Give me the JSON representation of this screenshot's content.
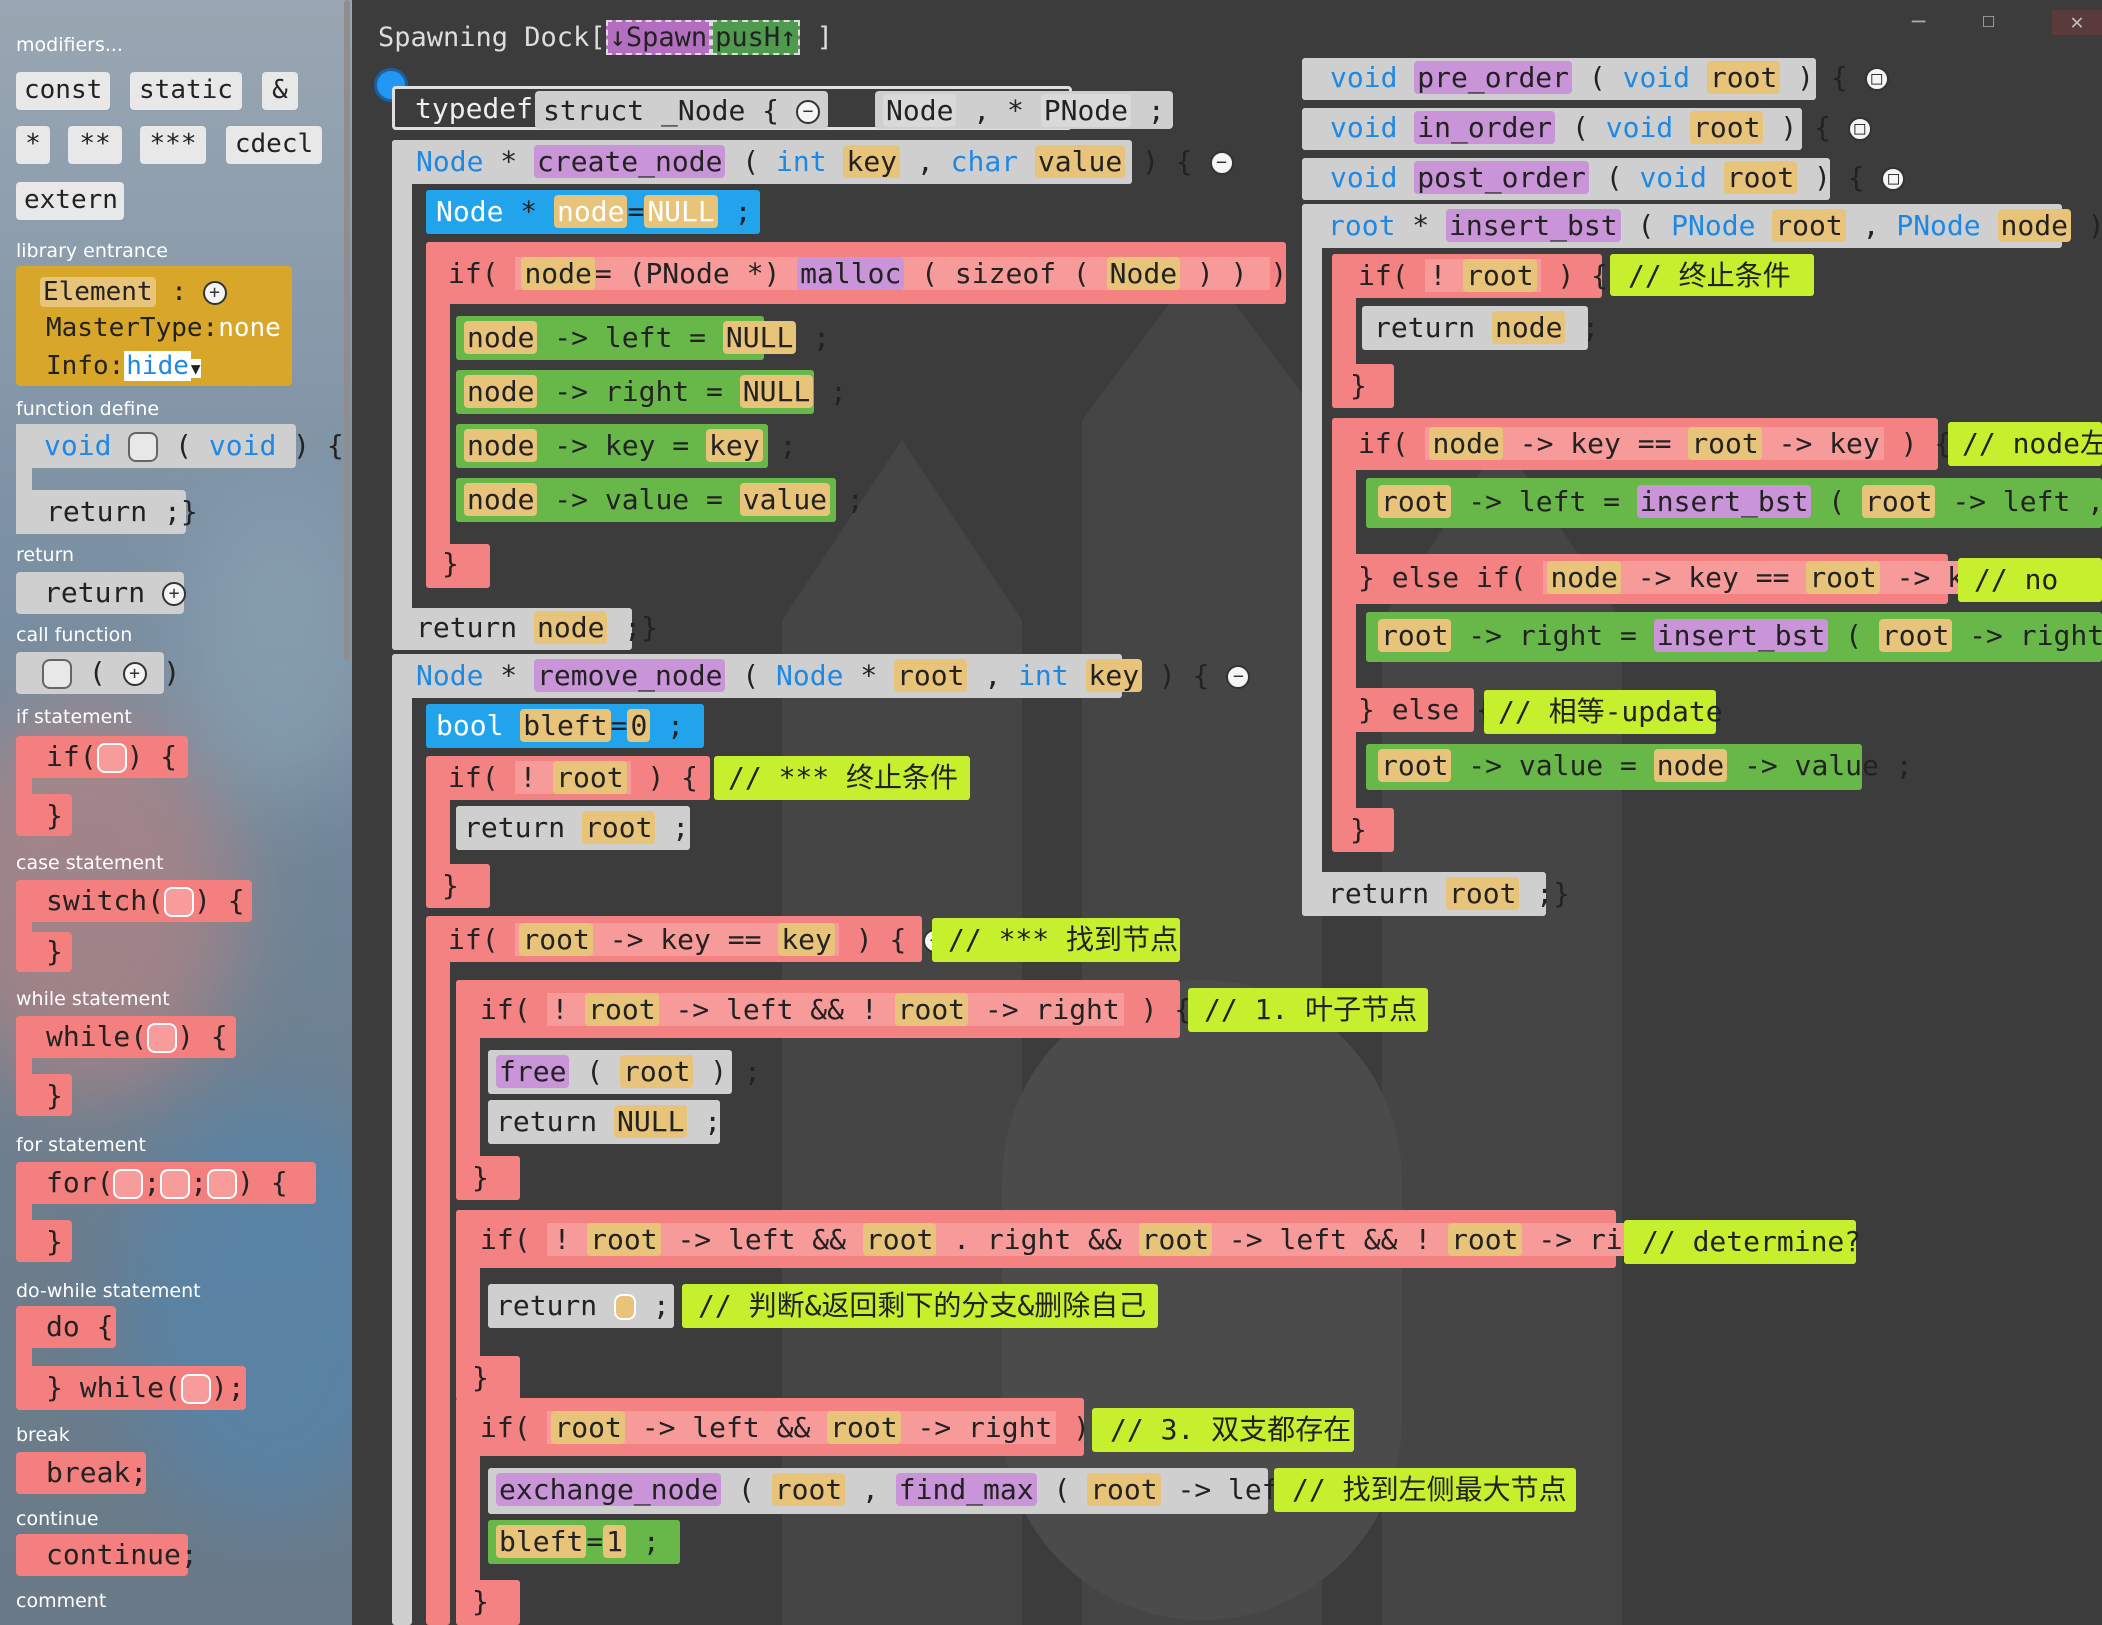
{
  "window": {
    "title": "Spawning Dock[",
    "dock_spawn": "↓Spawn",
    "dock_push": "pusH↑",
    "dock_end": "]",
    "minimize": "─",
    "maximize": "☐",
    "close": "✕"
  },
  "palette": {
    "modifiers_title": "modifiers...",
    "mods": [
      "const",
      "static",
      "&",
      "*",
      "**",
      "***",
      "cdecl",
      "extern"
    ],
    "library_title": "library entrance",
    "element_label": "Element",
    "element_colon": ":",
    "mastertype_label": "MasterType:",
    "mastertype_value": "none",
    "info_label": "Info:",
    "info_value": "hide",
    "function_define_title": "function define",
    "fd_void1": "void",
    "fd_void2": "void",
    "fd_paren_open": "(",
    "fd_paren_close": ") {",
    "fd_return": "return ;}",
    "return_title": "return",
    "return_label": "return",
    "call_title": "call function",
    "if_title": "if statement",
    "if_label": "if(",
    "if_close": ") {",
    "case_title": "case statement",
    "switch_label": "switch(",
    "while_title": "while statement",
    "while_label": "while(",
    "for_title": "for statement",
    "for_label": "for(",
    "dowhile_title": "do-while statement",
    "do_label": "do {",
    "dowhile_label": "} while(",
    "dowhile_end": ");",
    "break_title": "break",
    "break_label": "break;",
    "continue_title": "continue",
    "continue_label": "continue;",
    "comment_title": "comment",
    "brace_close": "}"
  },
  "code": {
    "typedef": {
      "kw": "typedef",
      "struct": "struct",
      "name": "_Node",
      "brace": "{",
      "node": "Node",
      "comma": ",",
      "star": "*",
      "pnode": "PNode",
      "semi": ";"
    },
    "create": {
      "ret": "Node",
      "star": "*",
      "name": "create_node",
      "p1t": "int",
      "p1": "key",
      "p2t": "char",
      "p2": "value",
      "decl_t": "Node",
      "decl_n": "node",
      "decl_v": "NULL",
      "if_lhs": "node",
      "cast": "(PNode *)",
      "malloc": "malloc",
      "sizeof": "sizeof",
      "sz_arg": "Node",
      "a1": "left",
      "a1v": "NULL",
      "a2": "right",
      "a2v": "NULL",
      "a3": "key",
      "a3v": "key",
      "a4": "value",
      "a4v": "value",
      "ret_val": "node"
    },
    "remove": {
      "ret": "Node",
      "name": "remove_node",
      "p1t": "Node",
      "p1": "root",
      "p2t": "int",
      "p2": "key",
      "decl_t": "bool",
      "decl_n": "bleft",
      "decl_v": "0",
      "if1": "root",
      "c1": "// *** 终止条件",
      "ret1": "root",
      "c2": "// *** 找到节点",
      "c3": "// 1. 叶子节点",
      "free": "free",
      "retnull": "NULL",
      "c4": "// determine?",
      "c5": "// 判断&返回剩下的分支&删除自己",
      "c6": "// 3. 双支都存在",
      "exch": "exchange_node",
      "findmax": "find_max",
      "c7": "// 找到左侧最大节点",
      "bleft_v": "1"
    },
    "orders": [
      "pre_order",
      "in_order",
      "post_order"
    ],
    "insert": {
      "ret": "root",
      "name": "insert_bst",
      "p1t": "PNode",
      "p1": "root",
      "p2t": "PNode",
      "p2": "node",
      "c1": "// 终止条件",
      "c2": "// node左侧",
      "c3": "// no",
      "c4": "// 相等-update"
    }
  },
  "colors": {
    "red": "#f47f7f",
    "green": "#68b849",
    "blue": "#22a4ec",
    "yellow": "#c6ef2e",
    "gray": "#a6a6a6"
  }
}
